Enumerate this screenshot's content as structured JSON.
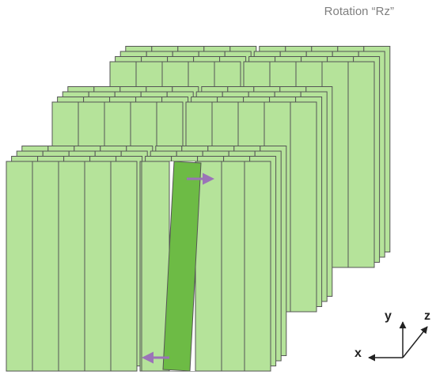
{
  "title": "Rotation “Rz”",
  "colors": {
    "stave_fill": "#b5e39a",
    "stave_stroke": "#555555",
    "rotated_stave_fill": "#6dbb45",
    "arrow": "#9b73b8",
    "axis": "#222222"
  },
  "axes": {
    "x_label": "x",
    "y_label": "y",
    "z_label": "z"
  }
}
